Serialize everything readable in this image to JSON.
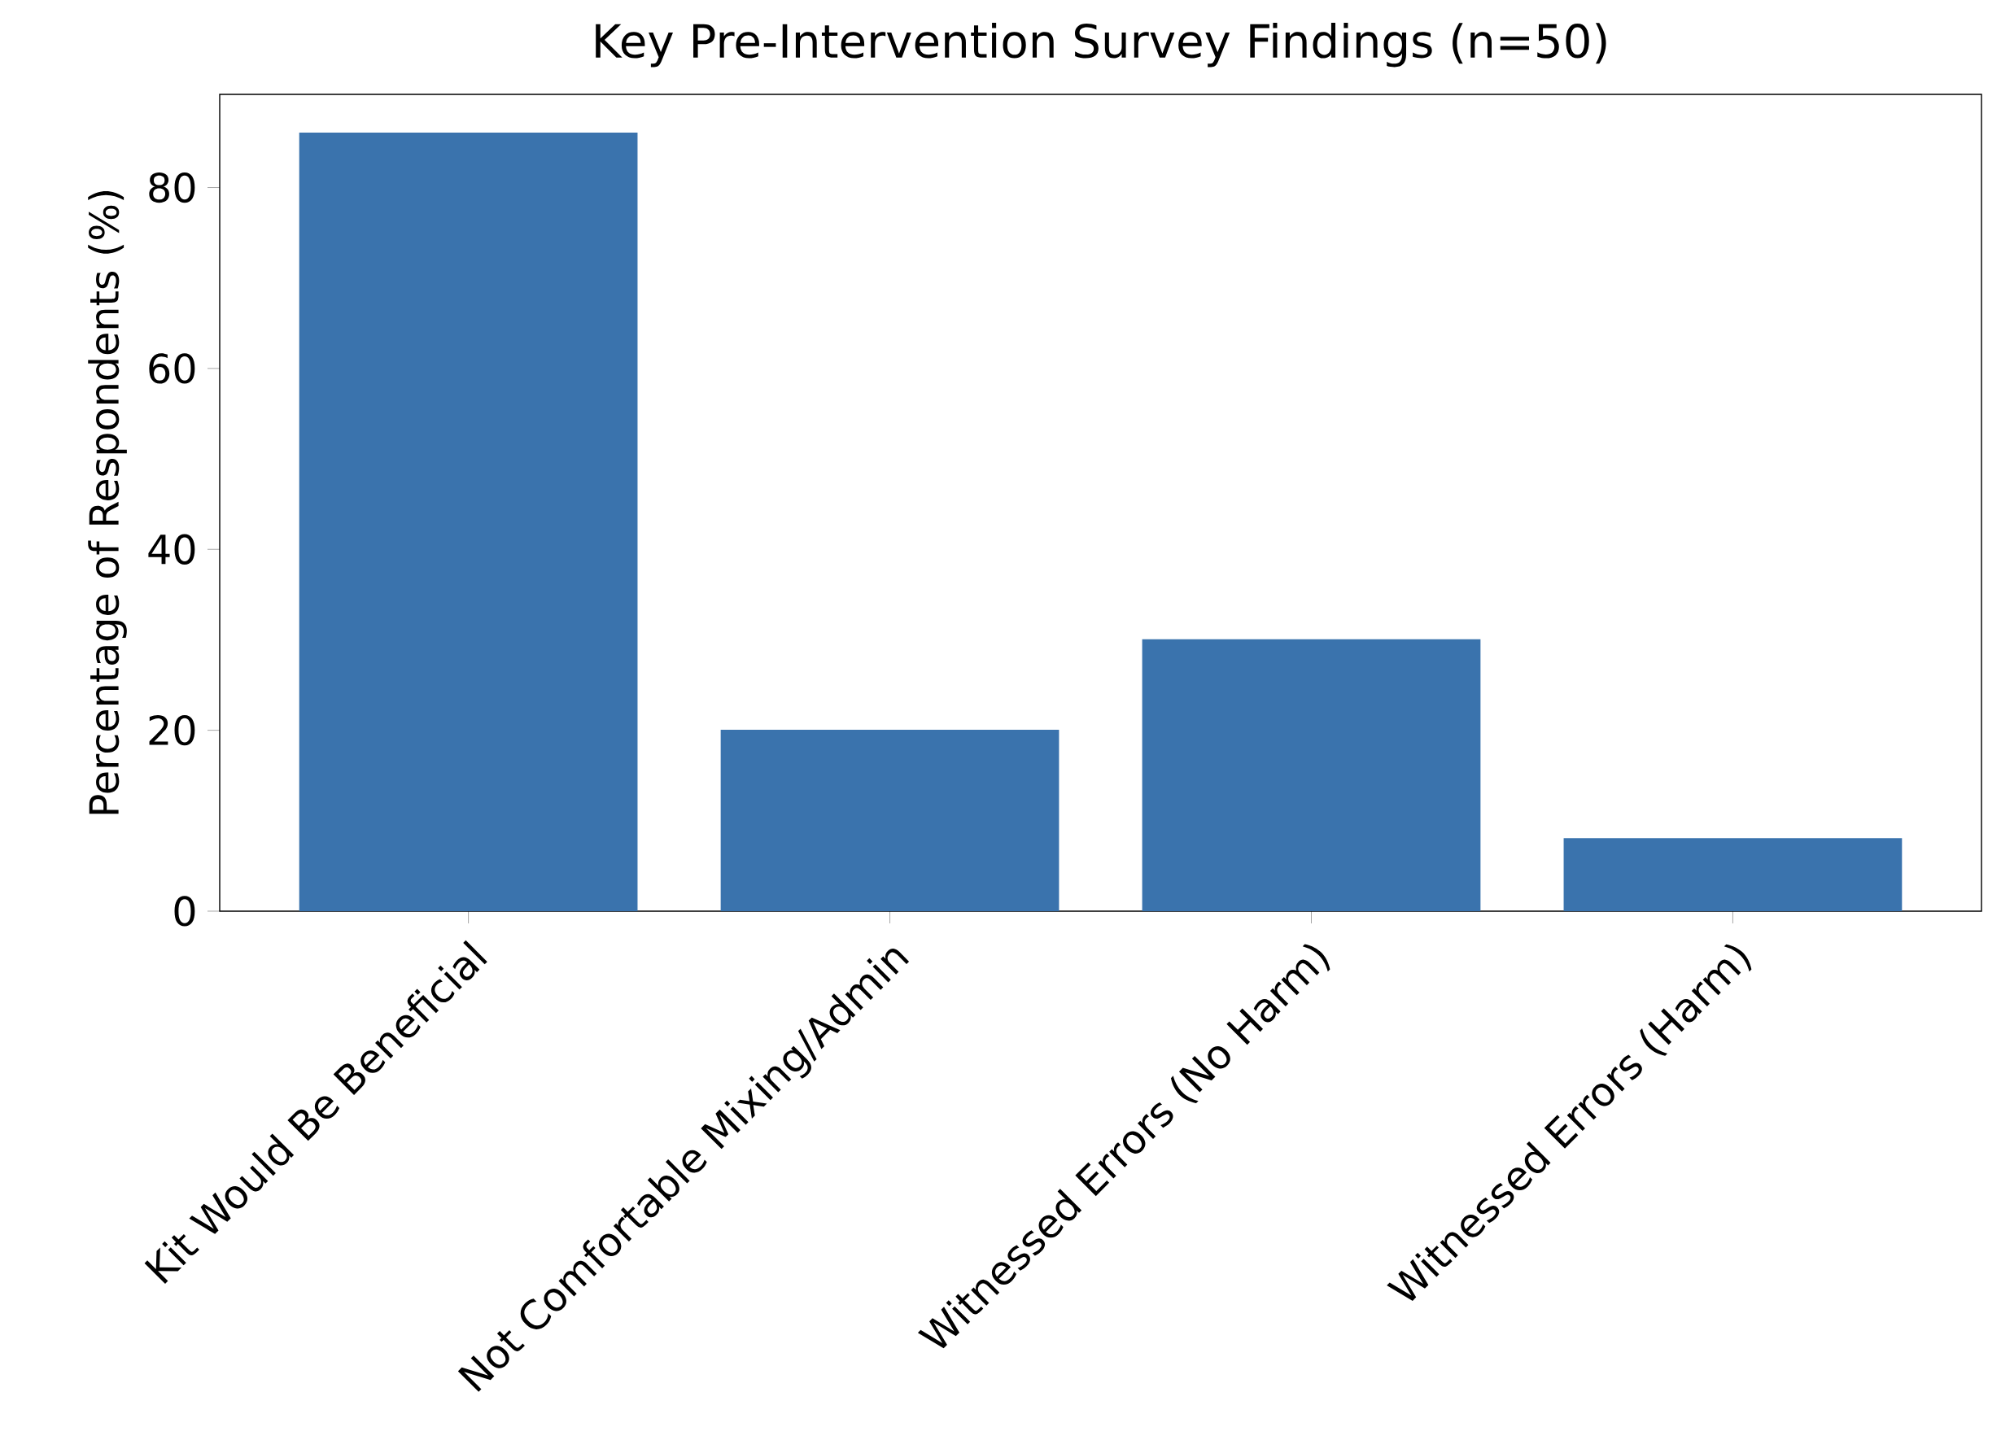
{
  "chart_data": {
    "type": "bar",
    "title": "Key Pre-Intervention Survey Findings (n=50)",
    "ylabel": "Percentage of Respondents (%)",
    "categories": [
      "Kit Would Be Beneficial",
      "Not Comfortable Mixing/Admin",
      "Witnessed Errors (No Harm)",
      "Witnessed Errors (Harm)"
    ],
    "values": [
      86,
      20,
      30,
      8
    ],
    "color": "#3a73ad",
    "ylim": [
      0,
      90.3
    ],
    "yticks": [
      0,
      20,
      40,
      60,
      80
    ],
    "grid": false
  }
}
